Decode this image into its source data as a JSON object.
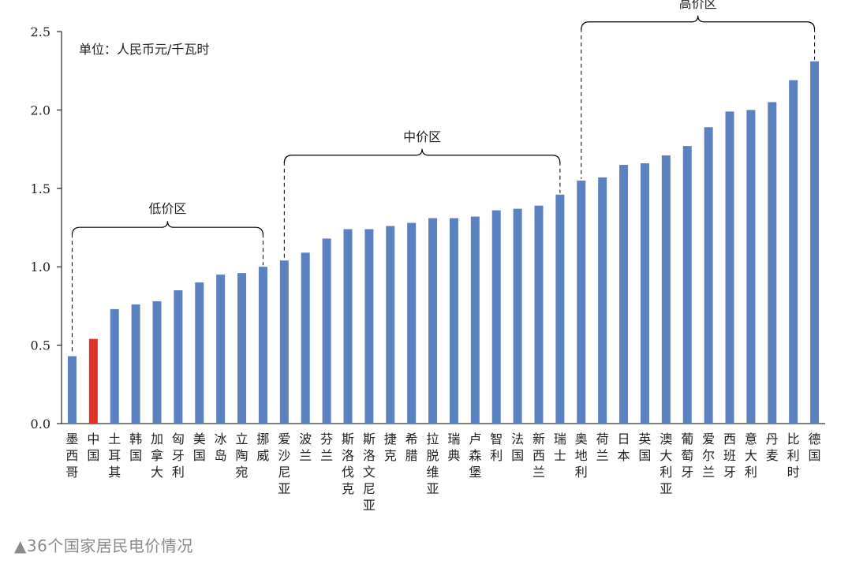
{
  "caption": "▲36个国家居民电价情况",
  "chart_data": {
    "type": "bar",
    "unit_note": "单位：人民币元/千瓦时",
    "categories": [
      "墨西哥",
      "中国",
      "土耳其",
      "韩国",
      "加拿大",
      "匈牙利",
      "美国",
      "冰岛",
      "立陶宛",
      "挪威",
      "爱沙尼亚",
      "波兰",
      "芬兰",
      "斯洛伐克",
      "斯洛文尼亚",
      "捷克",
      "希腊",
      "拉脱维亚",
      "瑞典",
      "卢森堡",
      "智利",
      "法国",
      "新西兰",
      "瑞士",
      "奥地利",
      "荷兰",
      "日本",
      "英国",
      "澳大利亚",
      "葡萄牙",
      "爱尔兰",
      "西班牙",
      "意大利",
      "丹麦",
      "比利时",
      "德国"
    ],
    "values": [
      0.43,
      0.54,
      0.73,
      0.76,
      0.78,
      0.85,
      0.9,
      0.95,
      0.96,
      1.0,
      1.04,
      1.09,
      1.18,
      1.24,
      1.24,
      1.26,
      1.28,
      1.31,
      1.31,
      1.32,
      1.36,
      1.37,
      1.39,
      1.46,
      1.55,
      1.57,
      1.65,
      1.66,
      1.71,
      1.77,
      1.89,
      1.99,
      2.0,
      2.05,
      2.19,
      2.31
    ],
    "highlight_index": 1,
    "bar_color": "#5b82c0",
    "highlight_color": "#e03127",
    "ylim": [
      0,
      2.5
    ],
    "yticks": [
      "0.0",
      "0.5",
      "1.0",
      "1.5",
      "2.0",
      "2.5"
    ],
    "grid": false,
    "groups": [
      {
        "label": "低价区",
        "start": 0,
        "end": 9
      },
      {
        "label": "中价区",
        "start": 10,
        "end": 23
      },
      {
        "label": "高价区",
        "start": 24,
        "end": 35
      }
    ]
  }
}
